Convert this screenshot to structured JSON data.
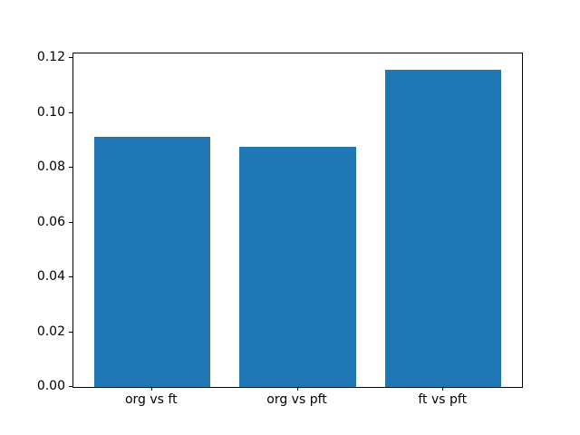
{
  "chart_data": {
    "type": "bar",
    "categories": [
      "org vs ft",
      "org vs pft",
      "ft vs pft"
    ],
    "values": [
      0.0913,
      0.0877,
      0.1157
    ],
    "title": "",
    "xlabel": "",
    "ylabel": "",
    "ylim": [
      0,
      0.1218
    ],
    "xlim": [
      -0.54,
      2.54
    ],
    "bar_width": 0.8,
    "yticks": [
      0.0,
      0.02,
      0.04,
      0.06,
      0.08,
      0.1,
      0.12
    ],
    "ytick_labels": [
      "0.00",
      "0.02",
      "0.04",
      "0.06",
      "0.08",
      "0.10",
      "0.12"
    ],
    "bar_color": "#1f77b4",
    "axis_color": "#000000",
    "background_color": "#ffffff",
    "grid": false,
    "legend": null
  }
}
